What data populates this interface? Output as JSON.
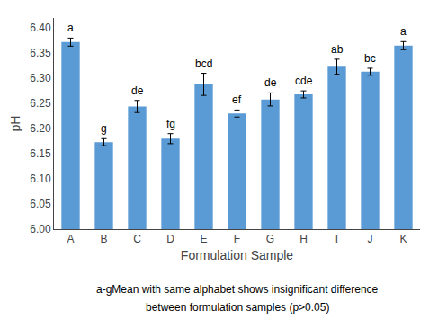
{
  "chart_data": {
    "type": "bar",
    "categories": [
      "A",
      "B",
      "C",
      "D",
      "E",
      "F",
      "G",
      "H",
      "I",
      "J",
      "K"
    ],
    "values": [
      6.372,
      6.173,
      6.244,
      6.18,
      6.288,
      6.23,
      6.258,
      6.268,
      6.323,
      6.313,
      6.365
    ],
    "errors": [
      0.008,
      0.007,
      0.012,
      0.01,
      0.022,
      0.007,
      0.013,
      0.007,
      0.015,
      0.007,
      0.008
    ],
    "sig_labels": [
      "a",
      "g",
      "de",
      "fg",
      "bcd",
      "ef",
      "de",
      "cde",
      "ab",
      "bc",
      "a"
    ],
    "color": "#5b9bd5",
    "xlabel": "Formulation Sample",
    "ylabel": "pH",
    "ylim": [
      6.0,
      6.42
    ],
    "yticks": [
      {
        "value": 6.0,
        "label": "6.00"
      },
      6.05,
      {
        "value": 6.1,
        "label": "6.10"
      },
      6.15,
      {
        "value": 6.2,
        "label": "6.20"
      },
      6.25,
      {
        "value": 6.3,
        "label": "6.30"
      },
      6.35,
      {
        "value": 6.4,
        "label": "6.40"
      }
    ],
    "grid": false,
    "annotations": [
      "a-gMean with same alphabet shows insignificant difference",
      "between formulation samples (p>0.05)"
    ]
  }
}
